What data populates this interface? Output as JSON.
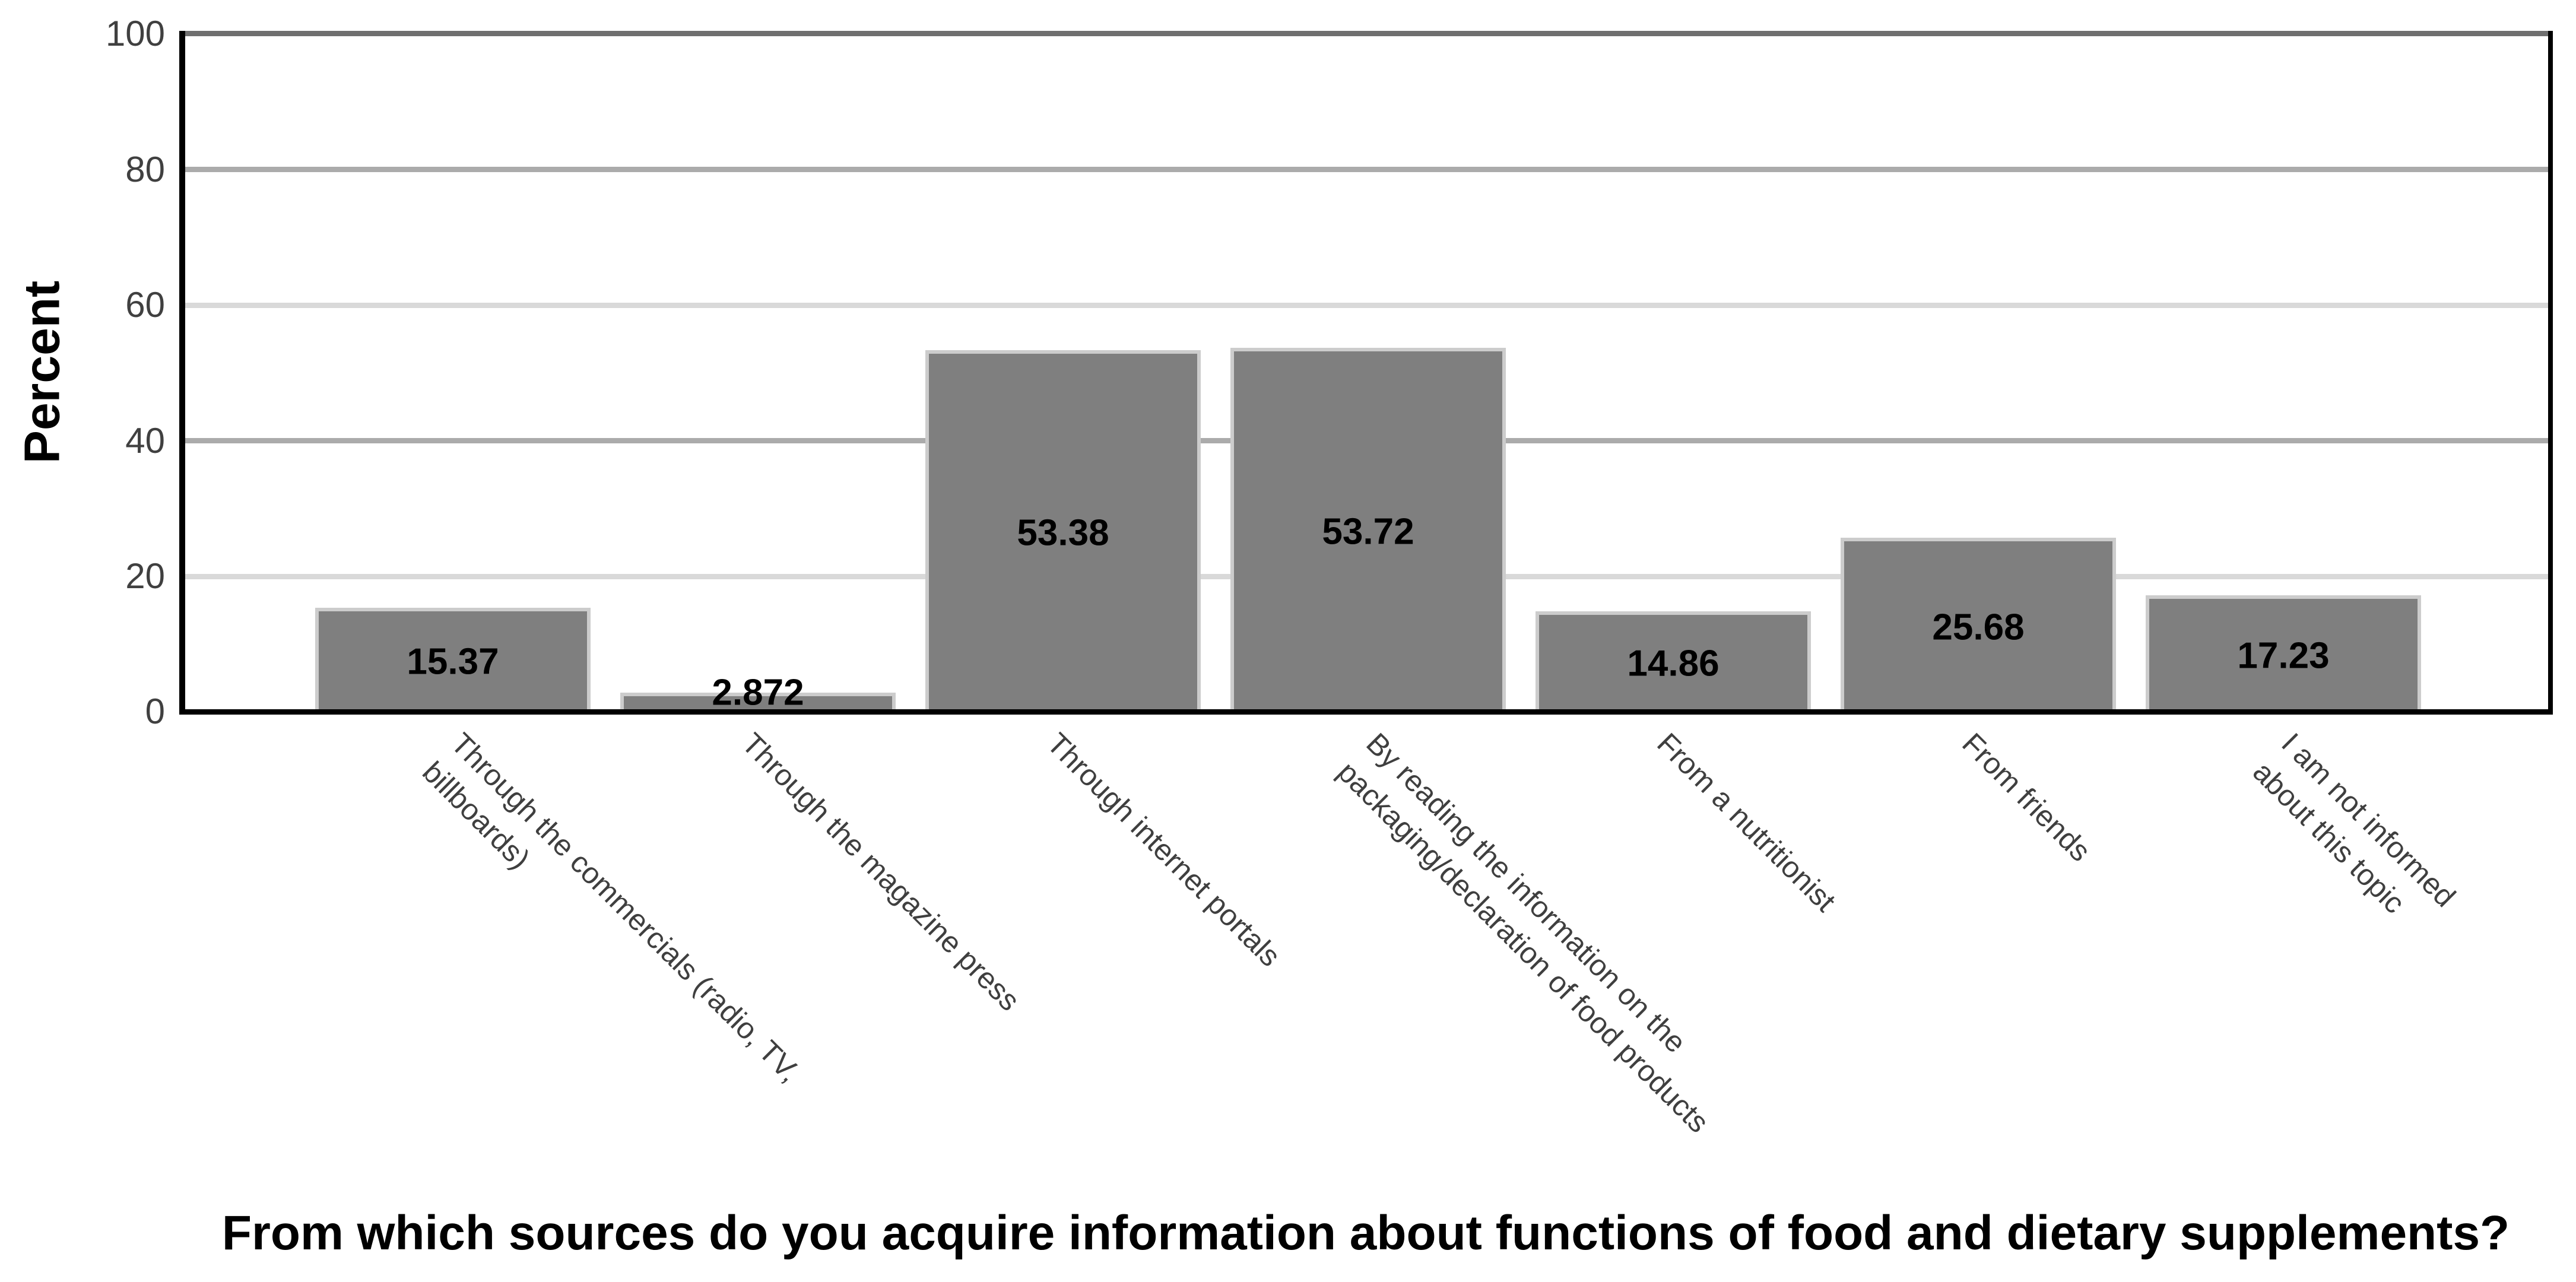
{
  "chart_data": {
    "type": "bar",
    "title": "",
    "xlabel": "From which sources do you acquire information about functions of food and dietary supplements?",
    "ylabel": "Percent",
    "categories": [
      {
        "lines": [
          "Through the commercials (radio, TV,",
          "billboards)"
        ]
      },
      {
        "lines": [
          "Through the magazine press"
        ]
      },
      {
        "lines": [
          "Through internet portals"
        ]
      },
      {
        "lines": [
          "By reading the information on the",
          "packaging/declaration of food products"
        ]
      },
      {
        "lines": [
          "From a nutritionist"
        ]
      },
      {
        "lines": [
          "From friends"
        ]
      },
      {
        "lines": [
          "I am not informed",
          "about this topic"
        ]
      }
    ],
    "values": [
      15.37,
      2.872,
      53.38,
      53.72,
      14.86,
      25.68,
      17.23
    ],
    "value_labels": [
      "15.37",
      "2.872",
      "53.38",
      "53.72",
      "14.86",
      "25.68",
      "17.23"
    ],
    "y_ticks": [
      0,
      20,
      40,
      60,
      80,
      100
    ],
    "ylim": [
      0,
      100
    ],
    "grid": "horizontal",
    "legend": "none",
    "colors": {
      "bar_fill": "#7f7f7f",
      "bar_edge": "#cccccc",
      "grid_major": "#ababab",
      "grid_minor": "#d9d9d9",
      "axis": "#000000",
      "plot_top_border": "#6f6f6f",
      "tick_text": "#404040",
      "category_text": "#3f3f3f",
      "value_text": "#000000"
    }
  }
}
